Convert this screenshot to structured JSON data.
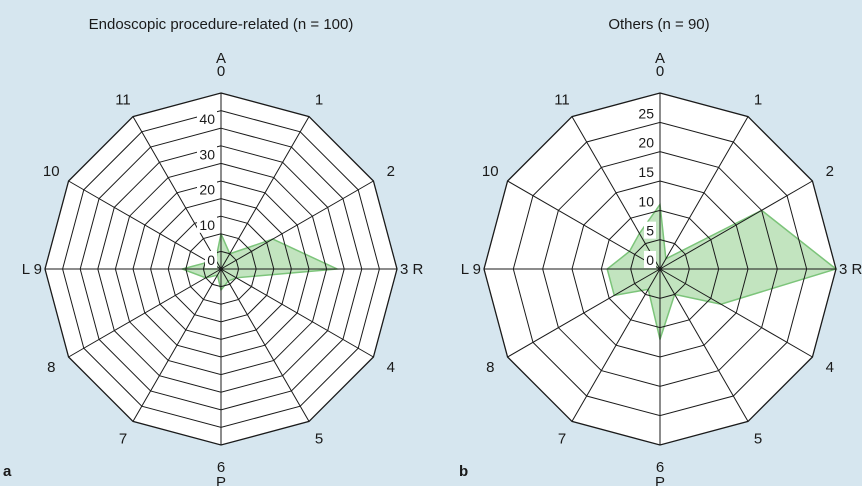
{
  "panels": [
    {
      "title": "Endoscopic procedure-related (n = 100)",
      "letter": "a"
    },
    {
      "title": "Others (n = 90)",
      "letter": "b"
    }
  ],
  "chart_data": [
    {
      "type": "radar",
      "title": "Endoscopic procedure-related (n = 100)",
      "panel_label": "a",
      "categories": [
        "0",
        "1",
        "2",
        "3",
        "4",
        "5",
        "6",
        "7",
        "8",
        "9",
        "10",
        "11"
      ],
      "direction_labels": {
        "top": "A",
        "bottom": "P",
        "left": "L",
        "right": "R"
      },
      "rlim": [
        0,
        50
      ],
      "radial_ticks": [
        0,
        10,
        20,
        30,
        40
      ],
      "grid": true,
      "fill_color": "#b7dfb4",
      "line_color": "#7cc47a",
      "values": [
        10,
        5,
        17,
        33,
        5,
        4,
        6,
        2,
        5,
        11,
        4,
        3
      ]
    },
    {
      "type": "radar",
      "title": "Others (n = 90)",
      "panel_label": "b",
      "categories": [
        "0",
        "1",
        "2",
        "3",
        "4",
        "5",
        "6",
        "7",
        "8",
        "9",
        "10",
        "11"
      ],
      "direction_labels": {
        "top": "A",
        "bottom": "P",
        "left": "L",
        "right": "R"
      },
      "rlim": [
        0,
        30
      ],
      "radial_ticks": [
        0,
        5,
        10,
        15,
        20,
        25
      ],
      "grid": true,
      "fill_color": "#b7dfb4",
      "line_color": "#7cc47a",
      "values": [
        11,
        2,
        20,
        30,
        12,
        5,
        12,
        4,
        9,
        9,
        6,
        7
      ]
    }
  ]
}
